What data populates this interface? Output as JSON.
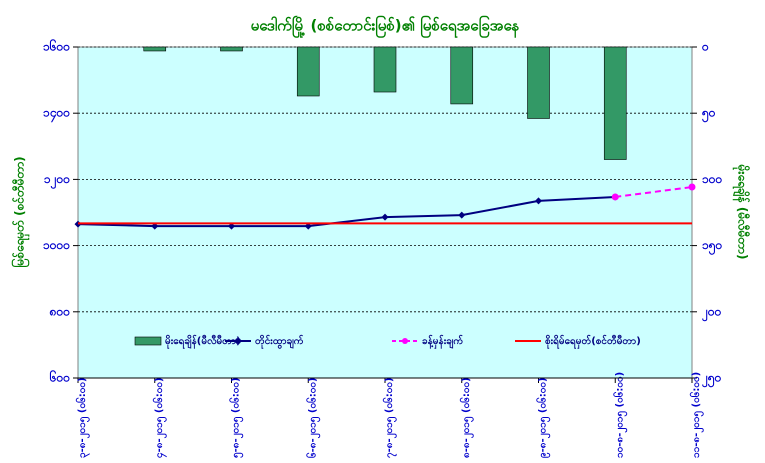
{
  "chart_data": {
    "type": "combo",
    "title": "မဒေါက်မြို့ (စစ်တောင်းမြစ်)၏ မြစ်ရေအခြေအနေ",
    "y_label": "မြစ်ရေမှတ် (စင်တီမီတာ)",
    "y2_label": "မိုးရေချိန် (မီလီမီတာ)",
    "categories": [
      "၃-၈-၂၀၁၅ (၀၆:၀၀)",
      "၄-၈-၂၀၁၅ (၀၆:၀၀)",
      "၅-၈-၂၀၁၅ (၀၆:၀၀)",
      "၆-၈-၂၀၁၅ (၀၆:၀၀)",
      "၇-၈-၂၀၁၅ (၀၆:၀၀)",
      "၈-၈-၂၀၁၅ (၀၆:၀၀)",
      "၉-၈-၂၀၁၅ (၀၆:၀၀)",
      "၁၀-၈-၂၀၁၅ (၀၆:၀၀)",
      "၁၁-၈-၂၀၁၅ (၀၆:၀၀)"
    ],
    "series": [
      {
        "name": "မိုးရေချိန်(မီလီမီတာ)",
        "type": "bar",
        "axis": "y2",
        "color": "#339966",
        "values": [
          null,
          3,
          3,
          37,
          34,
          43,
          54,
          85,
          null
        ]
      },
      {
        "name": "တိုင်းထွာချက်",
        "type": "line",
        "color": "#000080",
        "marker": "diamond",
        "values": [
          1065,
          1059,
          1059,
          1059,
          1086,
          1092,
          1135,
          1147,
          null
        ]
      },
      {
        "name": "ခန့်မှန်းချက်",
        "type": "line",
        "color": "#ff00ff",
        "dashed": true,
        "marker": "circle",
        "values": [
          null,
          null,
          null,
          null,
          null,
          null,
          null,
          1147,
          1177
        ]
      },
      {
        "name": "စိုးရိမ်ရေမှတ်(စင်တီမီတာ)",
        "type": "line",
        "color": "#ff0000",
        "values": [
          1067,
          1067,
          1067,
          1067,
          1067,
          1067,
          1067,
          1067,
          1067
        ]
      }
    ],
    "ylim": [
      600,
      1600
    ],
    "yticks": [
      {
        "value": 600,
        "label": "၆၀၀"
      },
      {
        "value": 800,
        "label": "၈၀၀"
      },
      {
        "value": 1000,
        "label": "၁၀၀၀"
      },
      {
        "value": 1200,
        "label": "၁၂၀၀"
      },
      {
        "value": 1400,
        "label": "၁၄၀၀"
      },
      {
        "value": 1600,
        "label": "၁၆၀၀"
      }
    ],
    "y2lim": [
      250,
      0
    ],
    "y2ticks": [
      {
        "value": 0,
        "label": "၀"
      },
      {
        "value": 50,
        "label": "၅၀"
      },
      {
        "value": 100,
        "label": "၁၀၀"
      },
      {
        "value": 150,
        "label": "၁၅၀"
      },
      {
        "value": 200,
        "label": "၂၀၀"
      },
      {
        "value": 250,
        "label": "၂၅၀"
      }
    ],
    "grid": true
  }
}
